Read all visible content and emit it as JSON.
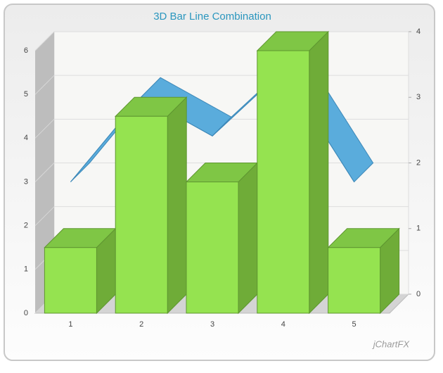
{
  "chart_data": {
    "type": "combo",
    "title": "3D Bar Line Combination",
    "categories": [
      "1",
      "2",
      "3",
      "4",
      "5"
    ],
    "series": [
      {
        "type": "bar",
        "color": "#95e350",
        "values": [
          1.5,
          4.5,
          3,
          6,
          1.5
        ]
      },
      {
        "type": "line",
        "axis": "y2",
        "color": "#5aacdc",
        "values": [
          2,
          3.3,
          2.7,
          3.7,
          2
        ]
      }
    ],
    "ylim": [
      0,
      6
    ],
    "yticks": [
      0,
      1,
      2,
      3,
      4,
      5,
      6
    ],
    "y2lim": [
      0,
      4
    ],
    "y2ticks": [
      0,
      1,
      2,
      3,
      4
    ],
    "grid": true,
    "watermark": "jChartFX"
  }
}
